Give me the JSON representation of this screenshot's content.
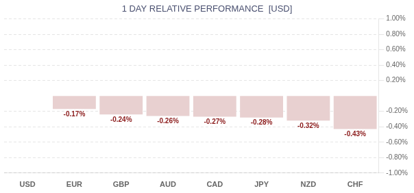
{
  "chart_data": {
    "type": "bar",
    "title": "1 DAY RELATIVE PERFORMANCE  [USD]",
    "categories": [
      "USD",
      "EUR",
      "GBP",
      "AUD",
      "CAD",
      "JPY",
      "NZD",
      "CHF"
    ],
    "values": [
      0.0,
      -0.17,
      -0.24,
      -0.26,
      -0.27,
      -0.28,
      -0.32,
      -0.43
    ],
    "value_labels": [
      null,
      "-0.17%",
      "-0.24%",
      "-0.26%",
      "-0.27%",
      "-0.28%",
      "-0.32%",
      "-0.43%"
    ],
    "data_labels": true,
    "color": "#e8d0d0",
    "ylim": [
      -1.0,
      1.0
    ],
    "yticks": [
      {
        "value": -1.0,
        "label": "-1.00%"
      },
      {
        "value": -0.8,
        "label": "-0.80%"
      },
      {
        "value": -0.6,
        "label": "-0.60%"
      },
      {
        "value": -0.4,
        "label": "-0.40%"
      },
      {
        "value": -0.2,
        "label": "-0.20%"
      },
      {
        "value": 0.2,
        "label": "0.20%"
      },
      {
        "value": 0.4,
        "label": "0.40%"
      },
      {
        "value": 0.6,
        "label": "0.60%"
      },
      {
        "value": 0.8,
        "label": "0.80%"
      },
      {
        "value": 1.0,
        "label": "1.00%"
      }
    ],
    "grid": true
  }
}
